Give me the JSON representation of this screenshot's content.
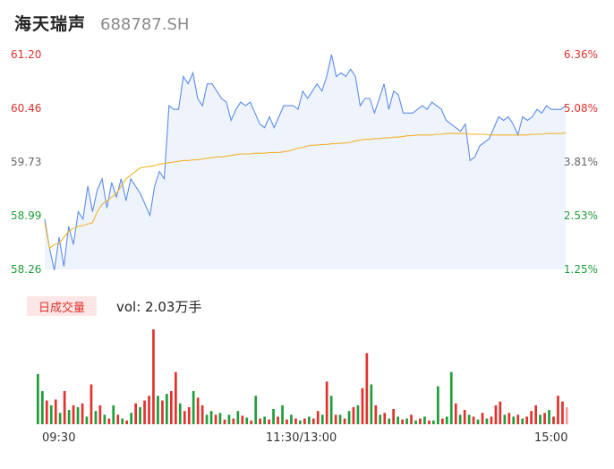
{
  "header": {
    "name": "海天瑞声",
    "code": "688787.SH"
  },
  "y_left_labels": [
    "61.20",
    "60.46",
    "59.73",
    "58.99",
    "58.26"
  ],
  "y_right_labels": [
    "6.36%",
    "5.08%",
    "3.81%",
    "2.53%",
    "1.25%"
  ],
  "volume": {
    "badge": "日成交量",
    "text": "vol: 2.03万手"
  },
  "x_labels": [
    "09:30",
    "11:30/13:00",
    "15:00"
  ],
  "colors": {
    "up": "#e0322e",
    "down": "#1f9d3a",
    "neutral": "#888888",
    "price_line": "#5b8def",
    "avg_line": "#f0b429",
    "area": "#eef3fc"
  },
  "chart_data": {
    "type": "line",
    "ylim": [
      58.26,
      61.2
    ],
    "pct_range": [
      "1.25%",
      "6.36%"
    ],
    "x_range": [
      "09:30",
      "15:00"
    ],
    "series": [
      {
        "values": [
          58.95,
          58.55,
          58.25,
          58.7,
          58.3,
          58.85,
          58.6,
          59.05,
          58.95,
          59.4,
          59.05,
          59.35,
          59.5,
          59.1,
          59.45,
          59.25,
          59.5,
          59.2,
          59.5,
          59.4,
          59.3,
          59.15,
          59.0,
          59.4,
          59.6,
          59.5,
          60.5,
          60.45,
          60.45,
          60.9,
          60.8,
          60.95,
          60.6,
          60.5,
          60.8,
          60.8,
          60.7,
          60.6,
          60.55,
          60.3,
          60.45,
          60.55,
          60.5,
          60.55,
          60.4,
          60.25,
          60.2,
          60.35,
          60.2,
          60.35,
          60.5,
          60.5,
          60.5,
          60.45,
          60.7,
          60.6,
          60.7,
          60.8,
          60.7,
          60.9,
          61.2,
          60.9,
          60.95,
          60.9,
          61.0,
          60.9,
          60.5,
          60.6,
          60.6,
          60.4,
          60.6,
          60.8,
          60.45,
          60.7,
          60.65,
          60.4,
          60.4,
          60.4,
          60.45,
          60.5,
          60.45,
          60.55,
          60.5,
          60.45,
          60.3,
          60.25,
          60.2,
          60.15,
          60.25,
          59.75,
          59.8,
          59.95,
          60.0,
          60.05,
          60.2,
          60.35,
          60.3,
          60.35,
          60.25,
          60.1,
          60.35,
          60.3,
          60.35,
          60.45,
          60.4,
          60.5,
          60.45,
          60.45,
          60.45,
          60.5
        ]
      },
      {
        "values": [
          58.9,
          58.55,
          58.6,
          58.62,
          58.7,
          58.78,
          58.82,
          58.85,
          58.86,
          58.88,
          58.9,
          59.05,
          59.15,
          59.2,
          59.25,
          59.3,
          59.4,
          59.5,
          59.55,
          59.6,
          59.65,
          59.66,
          59.67,
          59.68,
          59.7,
          59.71,
          59.72,
          59.73,
          59.74,
          59.75,
          59.75,
          59.76,
          59.76,
          59.77,
          59.78,
          59.79,
          59.8,
          59.8,
          59.81,
          59.82,
          59.83,
          59.84,
          59.84,
          59.84,
          59.85,
          59.85,
          59.85,
          59.86,
          59.86,
          59.86,
          59.87,
          59.88,
          59.9,
          59.92,
          59.93,
          59.95,
          59.96,
          59.96,
          59.97,
          59.97,
          59.98,
          59.98,
          59.99,
          59.99,
          60.0,
          60.02,
          60.03,
          60.04,
          60.04,
          60.05,
          60.05,
          60.06,
          60.06,
          60.07,
          60.07,
          60.08,
          60.09,
          60.09,
          60.1,
          60.1,
          60.1,
          60.1,
          60.11,
          60.11,
          60.12,
          60.12,
          60.12,
          60.12,
          60.12,
          60.11,
          60.11,
          60.11,
          60.11,
          60.1,
          60.1,
          60.1,
          60.1,
          60.1,
          60.1,
          60.1,
          60.1,
          60.1,
          60.11,
          60.11,
          60.11,
          60.12,
          60.12,
          60.12,
          60.12,
          60.13
        ]
      }
    ],
    "volume_data": [
      [
        0.53,
        "down"
      ],
      [
        0.35,
        "down"
      ],
      [
        0.25,
        "up"
      ],
      [
        0.2,
        "down"
      ],
      [
        0.26,
        "up"
      ],
      [
        0.12,
        "down"
      ],
      [
        0.35,
        "up"
      ],
      [
        0.15,
        "down"
      ],
      [
        0.2,
        "up"
      ],
      [
        0.18,
        "down"
      ],
      [
        0.22,
        "up"
      ],
      [
        0.08,
        "down"
      ],
      [
        0.42,
        "up"
      ],
      [
        0.14,
        "down"
      ],
      [
        0.2,
        "up"
      ],
      [
        0.1,
        "down"
      ],
      [
        0.06,
        "up"
      ],
      [
        0.2,
        "down"
      ],
      [
        0.1,
        "up"
      ],
      [
        0.06,
        "down"
      ],
      [
        0.04,
        "up"
      ],
      [
        0.12,
        "down"
      ],
      [
        0.22,
        "up"
      ],
      [
        0.18,
        "down"
      ],
      [
        0.25,
        "up"
      ],
      [
        0.3,
        "up"
      ],
      [
        1.0,
        "up"
      ],
      [
        0.3,
        "down"
      ],
      [
        0.25,
        "up"
      ],
      [
        0.32,
        "down"
      ],
      [
        0.35,
        "up"
      ],
      [
        0.55,
        "up"
      ],
      [
        0.22,
        "down"
      ],
      [
        0.14,
        "up"
      ],
      [
        0.18,
        "up"
      ],
      [
        0.35,
        "down"
      ],
      [
        0.28,
        "up"
      ],
      [
        0.2,
        "up"
      ],
      [
        0.1,
        "down"
      ],
      [
        0.14,
        "down"
      ],
      [
        0.1,
        "up"
      ],
      [
        0.12,
        "down"
      ],
      [
        0.05,
        "up"
      ],
      [
        0.1,
        "down"
      ],
      [
        0.06,
        "up"
      ],
      [
        0.14,
        "down"
      ],
      [
        0.09,
        "up"
      ],
      [
        0.07,
        "down"
      ],
      [
        0.04,
        "up"
      ],
      [
        0.3,
        "down"
      ],
      [
        0.06,
        "up"
      ],
      [
        0.08,
        "down"
      ],
      [
        0.05,
        "up"
      ],
      [
        0.16,
        "down"
      ],
      [
        0.08,
        "up"
      ],
      [
        0.2,
        "down"
      ],
      [
        0.05,
        "up"
      ],
      [
        0.1,
        "down"
      ],
      [
        0.06,
        "up"
      ],
      [
        0.04,
        "down"
      ],
      [
        0.06,
        "up"
      ],
      [
        0.08,
        "down"
      ],
      [
        0.06,
        "up"
      ],
      [
        0.14,
        "up"
      ],
      [
        0.1,
        "down"
      ],
      [
        0.45,
        "up"
      ],
      [
        0.3,
        "down"
      ],
      [
        0.1,
        "up"
      ],
      [
        0.1,
        "down"
      ],
      [
        0.06,
        "up"
      ],
      [
        0.14,
        "down"
      ],
      [
        0.18,
        "up"
      ],
      [
        0.2,
        "down"
      ],
      [
        0.38,
        "up"
      ],
      [
        0.75,
        "up"
      ],
      [
        0.42,
        "down"
      ],
      [
        0.2,
        "up"
      ],
      [
        0.1,
        "down"
      ],
      [
        0.12,
        "up"
      ],
      [
        0.06,
        "down"
      ],
      [
        0.16,
        "up"
      ],
      [
        0.08,
        "down"
      ],
      [
        0.05,
        "up"
      ],
      [
        0.06,
        "down"
      ],
      [
        0.1,
        "up"
      ],
      [
        0.04,
        "down"
      ],
      [
        0.06,
        "up"
      ],
      [
        0.08,
        "down"
      ],
      [
        0.04,
        "up"
      ],
      [
        0.04,
        "down"
      ],
      [
        0.4,
        "down"
      ],
      [
        0.06,
        "up"
      ],
      [
        0.08,
        "down"
      ],
      [
        0.55,
        "down"
      ],
      [
        0.22,
        "up"
      ],
      [
        0.1,
        "down"
      ],
      [
        0.15,
        "up"
      ],
      [
        0.1,
        "down"
      ],
      [
        0.08,
        "up"
      ],
      [
        0.05,
        "down"
      ],
      [
        0.12,
        "up"
      ],
      [
        0.06,
        "down"
      ],
      [
        0.08,
        "up"
      ],
      [
        0.2,
        "up"
      ],
      [
        0.24,
        "up"
      ],
      [
        0.1,
        "down"
      ],
      [
        0.12,
        "up"
      ],
      [
        0.08,
        "down"
      ],
      [
        0.1,
        "up"
      ],
      [
        0.06,
        "down"
      ],
      [
        0.08,
        "up"
      ],
      [
        0.14,
        "up"
      ],
      [
        0.2,
        "up"
      ],
      [
        0.1,
        "down"
      ],
      [
        0.12,
        "up"
      ],
      [
        0.15,
        "down"
      ],
      [
        0.08,
        "up"
      ],
      [
        0.3,
        "up"
      ],
      [
        0.24,
        "up"
      ],
      [
        0.18,
        "neutral"
      ]
    ]
  }
}
